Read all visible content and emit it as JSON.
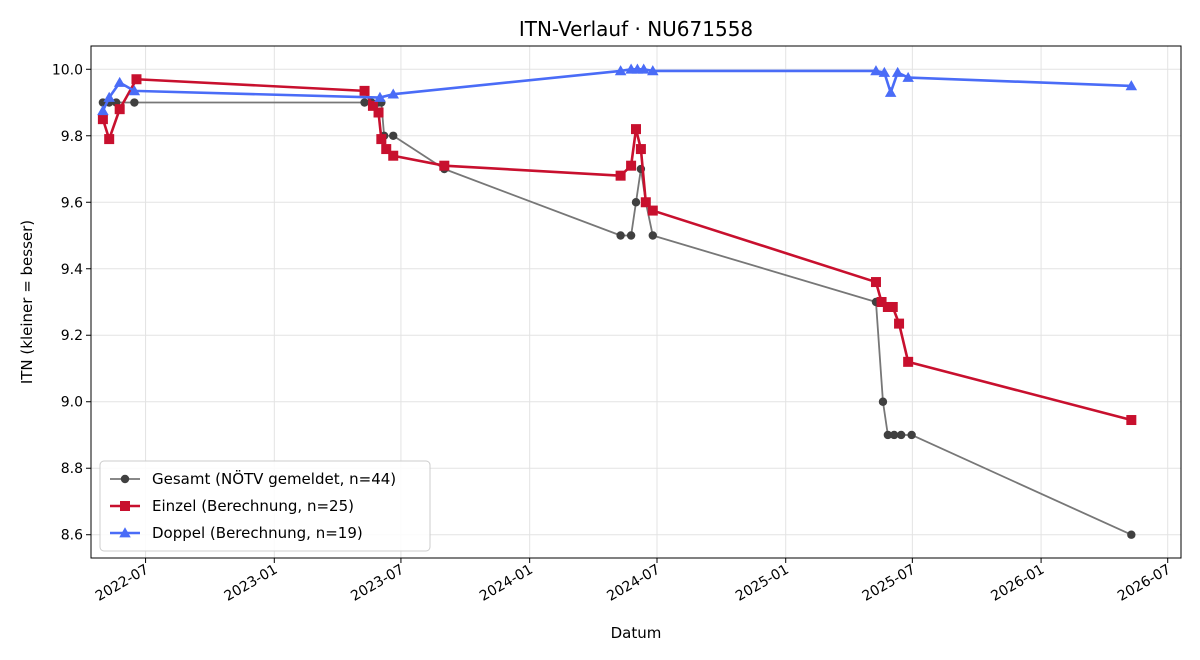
{
  "chart_data": {
    "type": "line",
    "title": "ITN-Verlauf · NU671558",
    "xlabel": "Datum",
    "ylabel": "ITN  (kleiner = besser)",
    "ylim": [
      8.53,
      10.07
    ],
    "xlim": [
      "2022-04-14",
      "2026-07-20"
    ],
    "grid": true,
    "legend_position": "lower-left",
    "x_ticks": [
      "2022-07",
      "2023-01",
      "2023-07",
      "2024-01",
      "2024-07",
      "2025-01",
      "2025-07",
      "2026-01",
      "2026-07"
    ],
    "y_ticks": [
      "8.6",
      "8.8",
      "9.0",
      "9.2",
      "9.4",
      "9.6",
      "9.8",
      "10.0"
    ],
    "series": [
      {
        "name": "Gesamt (NÖTV gemeldet, n=44)",
        "color": "#777777",
        "marker_color": "#404040",
        "marker": "circle",
        "points": [
          [
            "2022-05-01",
            9.9
          ],
          [
            "2022-05-10",
            9.9
          ],
          [
            "2022-05-20",
            9.9
          ],
          [
            "2022-06-15",
            9.9
          ],
          [
            "2023-05-10",
            9.9
          ],
          [
            "2023-05-20",
            9.9
          ],
          [
            "2023-05-30",
            9.9
          ],
          [
            "2023-06-03",
            9.9
          ],
          [
            "2023-06-07",
            9.8
          ],
          [
            "2023-06-20",
            9.8
          ],
          [
            "2023-09-01",
            9.7
          ],
          [
            "2024-05-10",
            9.5
          ],
          [
            "2024-05-25",
            9.5
          ],
          [
            "2024-06-01",
            9.6
          ],
          [
            "2024-06-08",
            9.7
          ],
          [
            "2024-06-15",
            9.6
          ],
          [
            "2024-06-25",
            9.5
          ],
          [
            "2025-05-10",
            9.3
          ],
          [
            "2025-05-20",
            9.0
          ],
          [
            "2025-05-27",
            8.9
          ],
          [
            "2025-06-05",
            8.9
          ],
          [
            "2025-06-15",
            8.9
          ],
          [
            "2025-06-30",
            8.9
          ],
          [
            "2026-05-10",
            8.6
          ]
        ]
      },
      {
        "name": "Einzel (Berechnung, n=25)",
        "color": "#c8102e",
        "marker": "square",
        "points": [
          [
            "2022-05-01",
            9.85
          ],
          [
            "2022-05-10",
            9.79
          ],
          [
            "2022-05-25",
            9.88
          ],
          [
            "2022-06-18",
            9.97
          ],
          [
            "2023-05-10",
            9.935
          ],
          [
            "2023-05-22",
            9.89
          ],
          [
            "2023-05-30",
            9.87
          ],
          [
            "2023-06-03",
            9.79
          ],
          [
            "2023-06-10",
            9.76
          ],
          [
            "2023-06-20",
            9.74
          ],
          [
            "2023-09-01",
            9.71
          ],
          [
            "2024-05-10",
            9.68
          ],
          [
            "2024-05-25",
            9.71
          ],
          [
            "2024-06-01",
            9.82
          ],
          [
            "2024-06-08",
            9.76
          ],
          [
            "2024-06-15",
            9.6
          ],
          [
            "2024-06-25",
            9.575
          ],
          [
            "2025-05-10",
            9.36
          ],
          [
            "2025-05-18",
            9.3
          ],
          [
            "2025-05-27",
            9.285
          ],
          [
            "2025-06-03",
            9.285
          ],
          [
            "2025-06-12",
            9.235
          ],
          [
            "2025-06-25",
            9.12
          ],
          [
            "2026-05-10",
            8.945
          ]
        ]
      },
      {
        "name": "Doppel (Berechnung, n=19)",
        "color": "#4a6cf7",
        "marker": "triangle",
        "points": [
          [
            "2022-05-01",
            9.875
          ],
          [
            "2022-05-10",
            9.915
          ],
          [
            "2022-05-25",
            9.96
          ],
          [
            "2022-06-15",
            9.935
          ],
          [
            "2023-06-01",
            9.915
          ],
          [
            "2023-06-20",
            9.925
          ],
          [
            "2024-05-10",
            9.995
          ],
          [
            "2024-05-25",
            10.0
          ],
          [
            "2024-06-03",
            10.0
          ],
          [
            "2024-06-12",
            10.0
          ],
          [
            "2024-06-25",
            9.995
          ],
          [
            "2025-05-10",
            9.995
          ],
          [
            "2025-05-22",
            9.99
          ],
          [
            "2025-05-31",
            9.93
          ],
          [
            "2025-06-10",
            9.99
          ],
          [
            "2025-06-25",
            9.975
          ],
          [
            "2026-05-10",
            9.95
          ]
        ]
      }
    ]
  }
}
